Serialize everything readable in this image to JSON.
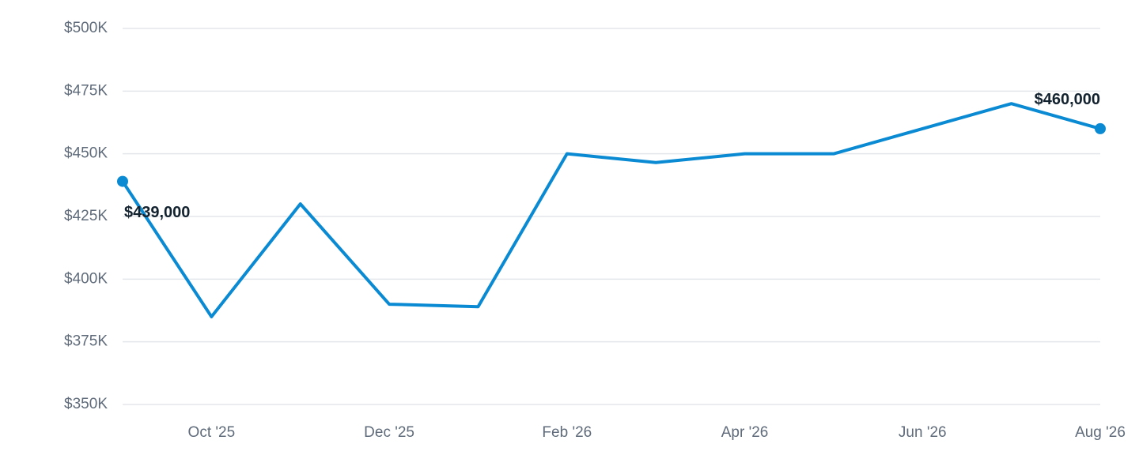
{
  "chart_data": {
    "type": "line",
    "categories": [
      null,
      "Oct '25",
      null,
      "Dec '25",
      null,
      "Feb '26",
      null,
      "Apr '26",
      null,
      "Jun '26",
      null,
      "Aug '26"
    ],
    "series": [
      {
        "color": "#0a8ad2",
        "values": [
          439000,
          385000,
          430000,
          390000,
          389000,
          450000,
          446500,
          450000,
          450000,
          460000,
          470000,
          460000
        ],
        "value_labels": [
          "$439,000",
          null,
          null,
          null,
          null,
          null,
          null,
          null,
          null,
          null,
          null,
          "$460,000"
        ]
      }
    ],
    "ylim": [
      350000,
      500000
    ],
    "yticks": [
      {
        "value": 350000,
        "label": "$350K"
      },
      {
        "value": 375000,
        "label": "$375K"
      },
      {
        "value": 400000,
        "label": "$400K"
      },
      {
        "value": 425000,
        "label": "$425K"
      },
      {
        "value": 450000,
        "label": "$450K"
      },
      {
        "value": 475000,
        "label": "$475K"
      },
      {
        "value": 500000,
        "label": "$500K"
      }
    ],
    "grid": true
  }
}
